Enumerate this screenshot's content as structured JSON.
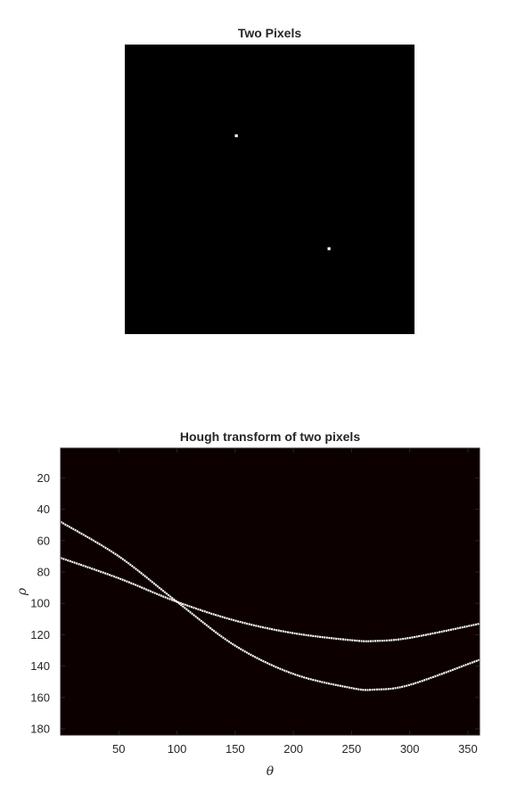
{
  "chart_data": [
    {
      "type": "heatmap",
      "title": "Two Pixels",
      "image_size": [
        100,
        100
      ],
      "background_color": "#000000",
      "pixel_color": "#ffffff",
      "points": [
        {
          "x": 38,
          "y": 31
        },
        {
          "x": 70,
          "y": 70
        }
      ],
      "axes_visible": false
    },
    {
      "type": "heatmap",
      "title": "Hough transform of two pixels",
      "xlabel": "θ",
      "ylabel": "ρ",
      "xlim": [
        0,
        360
      ],
      "ylim": [
        1,
        184
      ],
      "y_direction": "reversed",
      "x_ticks": [
        50,
        100,
        150,
        200,
        250,
        300,
        350
      ],
      "y_ticks": [
        20,
        40,
        60,
        80,
        100,
        120,
        140,
        160,
        180
      ],
      "background_color": "#0c0000",
      "curve_color": "#ffffff",
      "grid": false,
      "series": [
        {
          "x": [
            0,
            50,
            100,
            150,
            200,
            250,
            270,
            300,
            360
          ],
          "values": [
            71,
            84,
            99,
            111,
            119,
            123.5,
            124,
            122,
            113
          ]
        },
        {
          "x": [
            0,
            50,
            100,
            150,
            200,
            250,
            270,
            300,
            360
          ],
          "values": [
            48,
            70,
            99,
            127,
            145,
            154,
            155,
            152,
            136
          ]
        }
      ]
    }
  ]
}
